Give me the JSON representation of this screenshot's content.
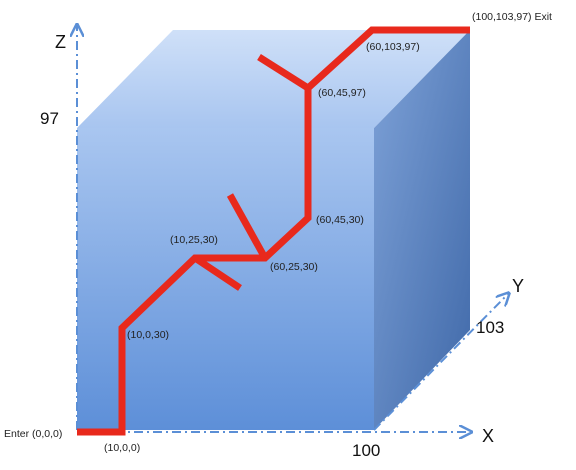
{
  "axes": {
    "z_label": "Z",
    "y_label": "Y",
    "x_label": "X",
    "z_max": "97",
    "y_max": "103",
    "x_max": "100"
  },
  "points": {
    "enter": "Enter (0,0,0)",
    "p1": "(10,0,0)",
    "p2": "(10,0,30)",
    "p3": "(10,25,30)",
    "p4": "(60,25,30)",
    "p5": "(60,45,30)",
    "p6": "(60,45,97)",
    "p7": "(60,103,97)",
    "exit": "(100,103,97) Exit"
  },
  "colors": {
    "path": "#e8291c",
    "axis": "#5b8fd6",
    "cube_front": "#7fa9e3",
    "cube_side": "#5f86c4",
    "cube_top": "#b6cff2"
  }
}
